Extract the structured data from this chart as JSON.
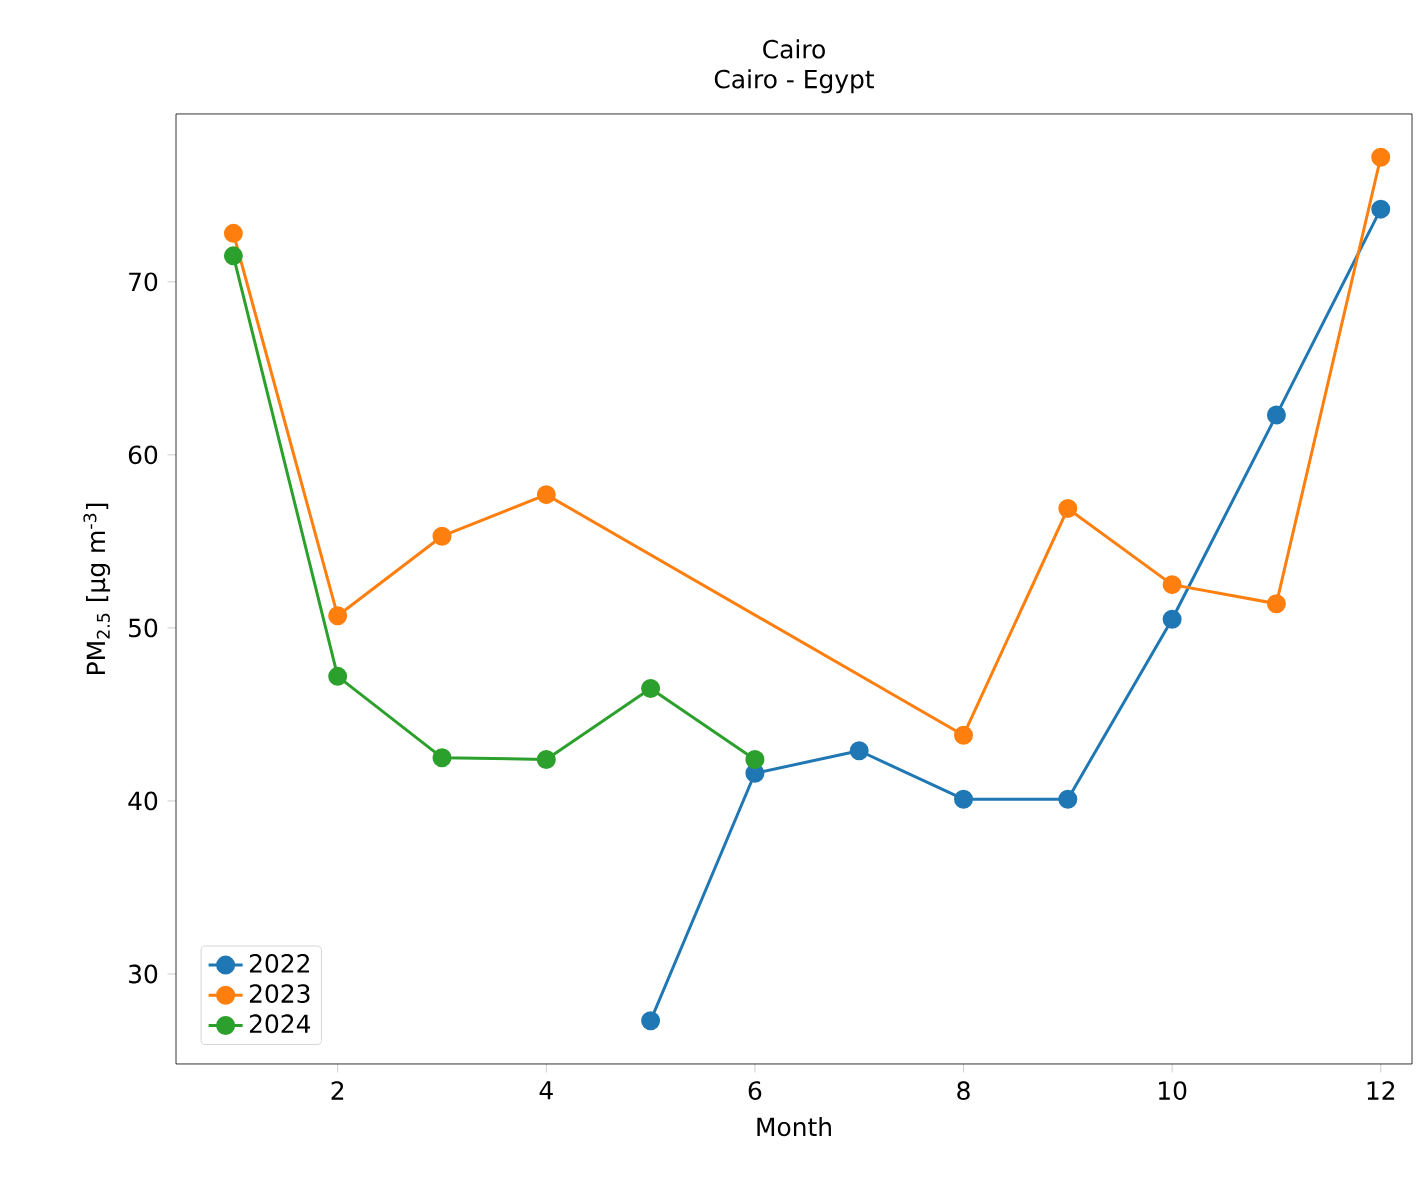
{
  "chart_data": {
    "type": "line",
    "title": "Cairo",
    "subtitle": "Cairo - Egypt",
    "xlabel": "Month",
    "ylabel": "PM$_{2.5}$ [μg m$^{-3}$]",
    "xlim": [
      0.45,
      12.3
    ],
    "ylim": [
      24.8,
      79.7
    ],
    "xticks": [
      2,
      4,
      6,
      8,
      10,
      12
    ],
    "yticks": [
      30,
      40,
      50,
      60,
      70
    ],
    "marker": "circle",
    "line_style": "solid",
    "grid": false,
    "legend": "bottom left",
    "series": [
      {
        "name": "2022",
        "color": "#1f77b4",
        "x": [
          5,
          6,
          7,
          8,
          9,
          10,
          11,
          12
        ],
        "values": [
          27.3,
          41.6,
          42.9,
          40.1,
          40.1,
          50.5,
          62.3,
          74.2
        ]
      },
      {
        "name": "2023",
        "color": "#ff7f0e",
        "x": [
          1,
          2,
          3,
          4,
          8,
          9,
          10,
          11,
          12
        ],
        "values": [
          72.8,
          50.7,
          55.3,
          57.7,
          43.8,
          56.9,
          52.5,
          51.4,
          77.2
        ]
      },
      {
        "name": "2024",
        "color": "#2ca02c",
        "x": [
          1,
          2,
          3,
          4,
          5,
          6
        ],
        "values": [
          71.5,
          47.2,
          42.5,
          42.4,
          46.5,
          42.4
        ]
      }
    ]
  }
}
